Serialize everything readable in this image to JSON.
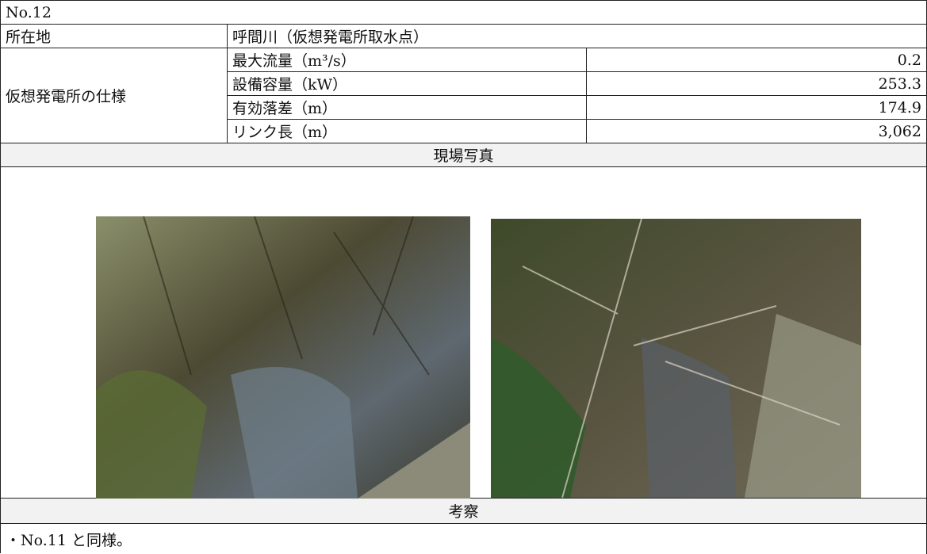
{
  "header": {
    "number": "No.12"
  },
  "location": {
    "label": "所在地",
    "value": "呼間川（仮想発電所取水点）"
  },
  "spec": {
    "label": "仮想発電所の仕様",
    "rows": [
      [
        "最大流量（m³/s）",
        "0.2"
      ],
      [
        "設備容量（kW）",
        "253.3"
      ],
      [
        "有効落差（m）",
        "174.9"
      ],
      [
        "リンク長（m）",
        "3,062"
      ]
    ]
  },
  "photos": {
    "heading": "現場写真"
  },
  "discussion": {
    "heading": "考察",
    "text": "・No.11 と同様。"
  }
}
